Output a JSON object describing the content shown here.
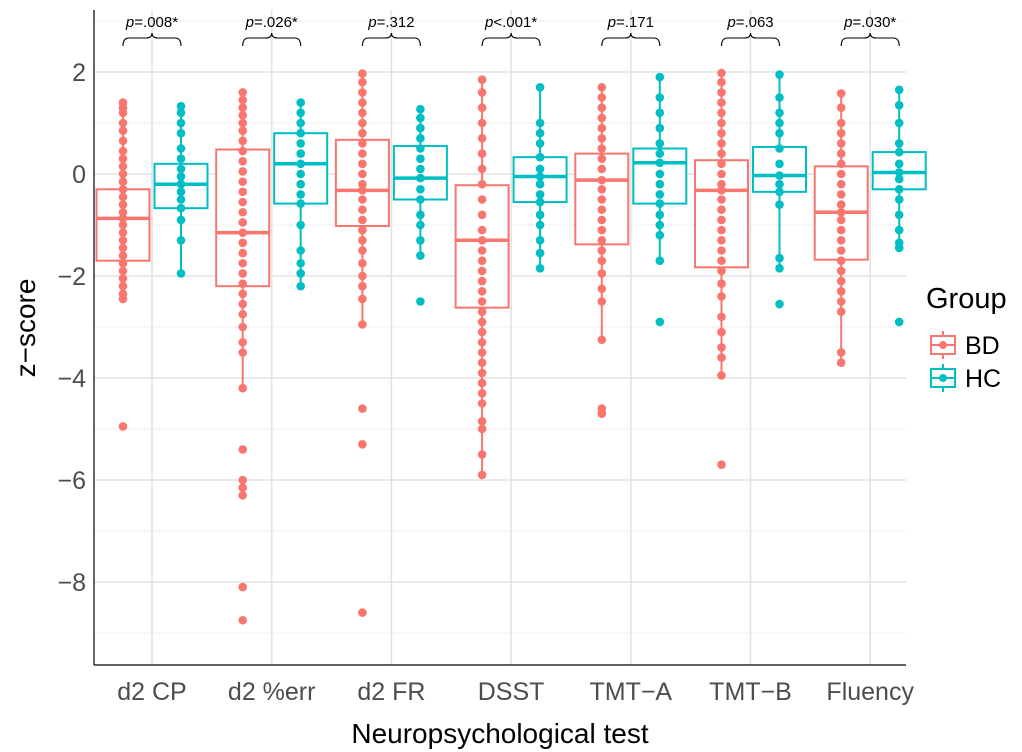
{
  "chart_data": {
    "type": "boxplot",
    "xlabel": "Neuropsychological test",
    "ylabel": "z−score",
    "ylim": [
      -9.6,
      3.1
    ],
    "yticks": [
      2,
      0,
      -2,
      -4,
      -6,
      -8
    ],
    "ytick_labels": [
      "2",
      "0",
      "−2",
      "−4",
      "−6",
      "−8"
    ],
    "grid": true,
    "categories": [
      "d2 CP",
      "d2 %err",
      "d2 FR",
      "DSST",
      "TMT−A",
      "TMT−B",
      "Fluency"
    ],
    "pvalues": [
      "=.008*",
      "=.026*",
      "=.312",
      "<.001*",
      "=.171",
      "=.063",
      "=.030*"
    ],
    "pvalue_prefix": "p",
    "legend": {
      "title": "Group",
      "position": "right",
      "entries": [
        "BD",
        "HC"
      ]
    },
    "colors": {
      "BD": "#F8766D",
      "HC": "#00BFC4"
    },
    "series": [
      {
        "name": "BD",
        "boxes": [
          {
            "q1": -1.7,
            "median": -0.87,
            "q3": -0.3,
            "whisker_low": -2.45,
            "whisker_high": 1.4
          },
          {
            "q1": -2.2,
            "median": -1.15,
            "q3": 0.48,
            "whisker_low": -4.2,
            "whisker_high": 1.6
          },
          {
            "q1": -1.02,
            "median": -0.32,
            "q3": 0.67,
            "whisker_low": -2.95,
            "whisker_high": 1.97
          },
          {
            "q1": -2.62,
            "median": -1.3,
            "q3": -0.22,
            "whisker_low": -5.9,
            "whisker_high": 1.85
          },
          {
            "q1": -1.38,
            "median": -0.12,
            "q3": 0.4,
            "whisker_low": -3.25,
            "whisker_high": 1.7
          },
          {
            "q1": -1.83,
            "median": -0.32,
            "q3": 0.27,
            "whisker_low": -3.95,
            "whisker_high": 1.98
          },
          {
            "q1": -1.68,
            "median": -0.75,
            "q3": 0.15,
            "whisker_low": -3.7,
            "whisker_high": 1.58
          }
        ],
        "points": [
          [
            1.4,
            1.3,
            1.2,
            1.0,
            0.85,
            0.65,
            0.45,
            0.3,
            0.15,
            0.0,
            -0.15,
            -0.3,
            -0.45,
            -0.6,
            -0.75,
            -0.87,
            -1.0,
            -1.15,
            -1.3,
            -1.45,
            -1.6,
            -1.75,
            -1.9,
            -2.05,
            -2.2,
            -2.35,
            -2.45,
            -4.95
          ],
          [
            1.6,
            1.45,
            1.3,
            1.15,
            1.0,
            0.85,
            0.65,
            0.45,
            0.25,
            0.05,
            -0.15,
            -0.35,
            -0.55,
            -0.75,
            -0.95,
            -1.15,
            -1.35,
            -1.55,
            -1.75,
            -1.95,
            -2.15,
            -2.35,
            -2.55,
            -2.75,
            -3.0,
            -3.3,
            -3.5,
            -4.2,
            -5.4,
            -6.0,
            -6.15,
            -6.3,
            -8.1,
            -8.75
          ],
          [
            1.97,
            1.8,
            1.6,
            1.4,
            1.2,
            1.0,
            0.8,
            0.6,
            0.4,
            0.2,
            0.0,
            -0.2,
            -0.32,
            -0.5,
            -0.7,
            -0.9,
            -1.1,
            -1.3,
            -1.5,
            -1.75,
            -2.0,
            -2.2,
            -2.45,
            -2.95,
            -4.6,
            -5.3,
            -8.6
          ],
          [
            1.85,
            1.6,
            1.3,
            1.0,
            0.7,
            0.4,
            0.1,
            -0.2,
            -0.5,
            -0.8,
            -1.1,
            -1.3,
            -1.5,
            -1.7,
            -1.9,
            -2.1,
            -2.3,
            -2.5,
            -2.7,
            -2.9,
            -3.1,
            -3.3,
            -3.5,
            -3.7,
            -3.9,
            -4.1,
            -4.3,
            -4.5,
            -4.85,
            -5.0,
            -5.5,
            -5.9
          ],
          [
            1.7,
            1.5,
            1.3,
            1.1,
            0.9,
            0.7,
            0.5,
            0.3,
            0.1,
            -0.12,
            -0.3,
            -0.5,
            -0.7,
            -0.9,
            -1.1,
            -1.3,
            -1.5,
            -1.7,
            -1.95,
            -2.25,
            -2.5,
            -3.25,
            -4.6,
            -4.7
          ],
          [
            1.98,
            1.8,
            1.6,
            1.4,
            1.2,
            1.0,
            0.8,
            0.6,
            0.4,
            0.2,
            0.0,
            -0.2,
            -0.32,
            -0.5,
            -0.7,
            -0.9,
            -1.1,
            -1.3,
            -1.5,
            -1.7,
            -1.9,
            -2.15,
            -2.4,
            -2.8,
            -3.1,
            -3.4,
            -3.6,
            -3.95,
            -5.7
          ],
          [
            1.58,
            1.3,
            1.0,
            0.8,
            0.6,
            0.4,
            0.2,
            0.0,
            -0.2,
            -0.4,
            -0.6,
            -0.75,
            -0.9,
            -1.1,
            -1.3,
            -1.5,
            -1.7,
            -1.9,
            -2.1,
            -2.3,
            -2.5,
            -2.7,
            -3.5,
            -3.7
          ]
        ]
      },
      {
        "name": "HC",
        "boxes": [
          {
            "q1": -0.67,
            "median": -0.2,
            "q3": 0.2,
            "whisker_low": -1.95,
            "whisker_high": 1.33
          },
          {
            "q1": -0.58,
            "median": 0.2,
            "q3": 0.8,
            "whisker_low": -2.2,
            "whisker_high": 1.4
          },
          {
            "q1": -0.5,
            "median": -0.08,
            "q3": 0.55,
            "whisker_low": -1.65,
            "whisker_high": 1.27
          },
          {
            "q1": -0.55,
            "median": -0.05,
            "q3": 0.33,
            "whisker_low": -1.85,
            "whisker_high": 1.7
          },
          {
            "q1": -0.58,
            "median": 0.22,
            "q3": 0.5,
            "whisker_low": -1.7,
            "whisker_high": 1.9
          },
          {
            "q1": -0.35,
            "median": -0.03,
            "q3": 0.53,
            "whisker_low": -1.9,
            "whisker_high": 1.95
          },
          {
            "q1": -0.3,
            "median": 0.03,
            "q3": 0.43,
            "whisker_low": -1.45,
            "whisker_high": 1.65
          }
        ],
        "points": [
          [
            1.33,
            1.2,
            1.0,
            0.8,
            0.5,
            0.3,
            0.1,
            -0.05,
            -0.2,
            -0.35,
            -0.5,
            -0.67,
            -0.9,
            -1.3,
            -1.95
          ],
          [
            1.4,
            1.2,
            1.0,
            0.8,
            0.6,
            0.4,
            0.2,
            0.0,
            -0.2,
            -0.4,
            -0.58,
            -1.0,
            -1.5,
            -1.75,
            -1.95,
            -2.2
          ],
          [
            1.27,
            1.1,
            0.9,
            0.7,
            0.5,
            0.3,
            0.1,
            -0.08,
            -0.3,
            -0.5,
            -0.8,
            -1.0,
            -1.3,
            -1.6,
            -2.5
          ],
          [
            1.7,
            1.0,
            0.8,
            0.6,
            0.33,
            0.1,
            -0.05,
            -0.2,
            -0.4,
            -0.55,
            -0.8,
            -1.0,
            -1.3,
            -1.55,
            -1.85
          ],
          [
            1.9,
            1.5,
            1.2,
            0.9,
            0.6,
            0.4,
            0.22,
            0.0,
            -0.2,
            -0.4,
            -0.58,
            -0.8,
            -1.0,
            -1.2,
            -1.7,
            -2.9
          ],
          [
            1.95,
            1.5,
            1.2,
            1.0,
            0.8,
            0.5,
            0.2,
            -0.03,
            -0.2,
            -0.35,
            -0.6,
            -1.65,
            -1.85,
            -2.55
          ],
          [
            1.65,
            1.35,
            1.0,
            0.6,
            0.43,
            0.2,
            0.03,
            -0.1,
            -0.3,
            -0.5,
            -0.8,
            -1.1,
            -1.35,
            -1.45,
            -2.9
          ]
        ]
      }
    ]
  }
}
